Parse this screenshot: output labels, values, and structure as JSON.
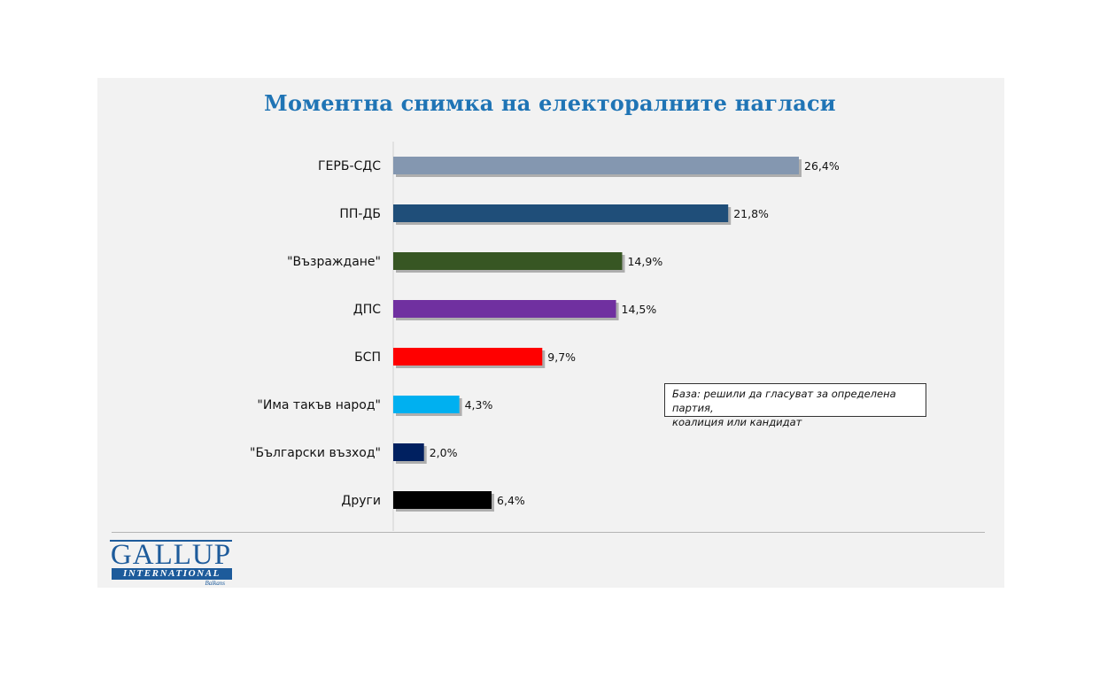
{
  "chart_data": {
    "type": "bar",
    "orientation": "horizontal",
    "title": "Моментна снимка на електоралните нагласи",
    "categories": [
      "ГЕРБ-СДС",
      "ПП-ДБ",
      "\"Възраждане\"",
      "ДПС",
      "БСП",
      "\"Има такъв народ\"",
      "\"Български възход\"",
      "Други"
    ],
    "values": [
      26.4,
      21.8,
      14.9,
      14.5,
      9.7,
      4.3,
      2.0,
      6.4
    ],
    "value_labels": [
      "26,4%",
      "21,8%",
      "14,9%",
      "14,5%",
      "9,7%",
      "4,3%",
      "2,0%",
      "6,4%"
    ],
    "colors": [
      "#8497b0",
      "#1f4e79",
      "#375623",
      "#7030a0",
      "#ff0000",
      "#00b0f0",
      "#002060",
      "#000000"
    ],
    "xlim": [
      0,
      30
    ],
    "xlabel": "",
    "ylabel": "",
    "grid": false
  },
  "note": {
    "line1": "База: решили да гласуват за определена партия,",
    "line2": "коалиция или кандидат"
  },
  "logo": {
    "word": "GALLUP",
    "bar": "INTERNATIONAL",
    "sub": "Balkans"
  }
}
